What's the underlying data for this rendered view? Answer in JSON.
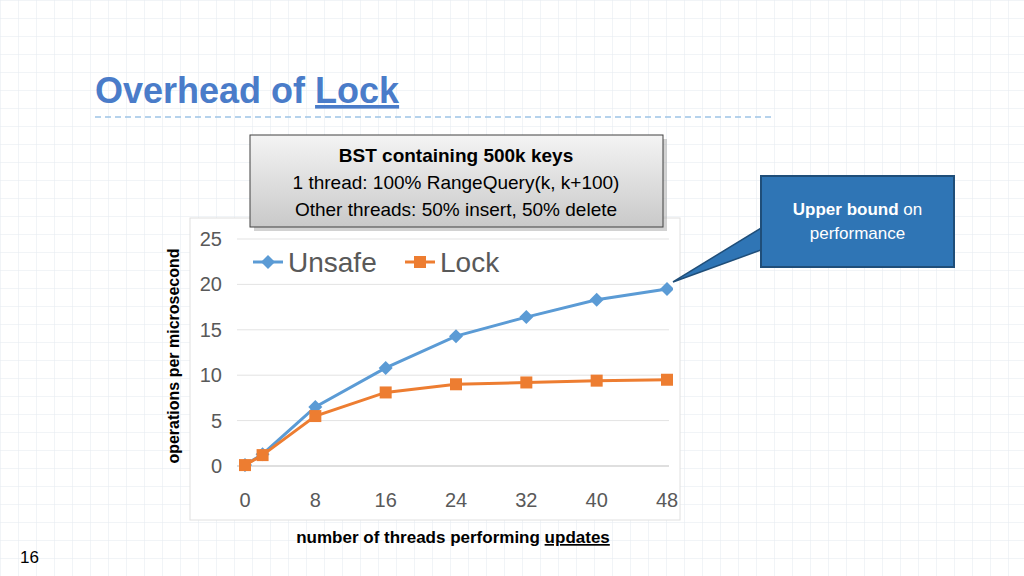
{
  "slide": {
    "title": "Overhead of Lock",
    "page_number": "16"
  },
  "chart_data": {
    "type": "line",
    "title": "BST containing 500k keys",
    "subtitle": [
      "1 thread: 100% RangeQuery(k, k+100)",
      "Other threads: 50% insert, 50% delete"
    ],
    "x_label": "number of threads performing updates",
    "y_label": "operations per microsecond",
    "x": [
      0,
      2,
      8,
      16,
      24,
      32,
      40,
      48
    ],
    "series": [
      {
        "name": "Unsafe",
        "color": "#5b9bd5",
        "marker": "diamond",
        "line_style": "solid",
        "values": [
          0.1,
          1.3,
          6.5,
          10.8,
          14.3,
          16.4,
          18.3,
          19.5
        ]
      },
      {
        "name": "Lock",
        "color": "#ed7d31",
        "marker": "square",
        "line_style": "solid",
        "values": [
          0.1,
          1.2,
          5.5,
          8.1,
          9.0,
          9.2,
          9.4,
          9.5
        ]
      }
    ],
    "xlim": [
      0,
      48
    ],
    "xticks": [
      0,
      8,
      16,
      24,
      32,
      40,
      48
    ],
    "ylim": [
      0,
      25
    ],
    "yticks": [
      0,
      5,
      10,
      15,
      20,
      25
    ],
    "grid": true,
    "legend": "top-left",
    "annotations": [
      {
        "text": "Upper bound on performance"
      }
    ]
  }
}
